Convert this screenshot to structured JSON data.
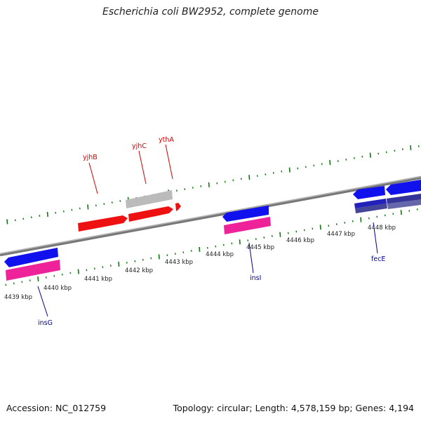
{
  "title": "Escherichia coli BW2952, complete genome",
  "footer": {
    "accession": "Accession: NC_012759",
    "summary": "Topology: circular; Length: 4,578,159 bp; Genes: 4,194"
  },
  "colors": {
    "forward_gene": "#ee1111",
    "reverse_gene": "#1111ee",
    "pseudo_gene": "#bbbbbb",
    "cds_reverse": "#ee2299",
    "cds_dark": "#333399",
    "backbone": "#888888",
    "ticks": "#117711",
    "label_forward": "#cc0000",
    "label_reverse": "#000099"
  },
  "scale": {
    "labels": [
      "4439 kbp",
      "4440 kbp",
      "4441 kbp",
      "4442 kbp",
      "4443 kbp",
      "4444 kbp",
      "4445 kbp",
      "4446 kbp",
      "4447 kbp",
      "4448 kbp"
    ]
  },
  "genes": {
    "forward": [
      "yjhB",
      "yjhC",
      "ythA"
    ],
    "reverse": [
      "insG",
      "insI",
      "fecE"
    ]
  }
}
